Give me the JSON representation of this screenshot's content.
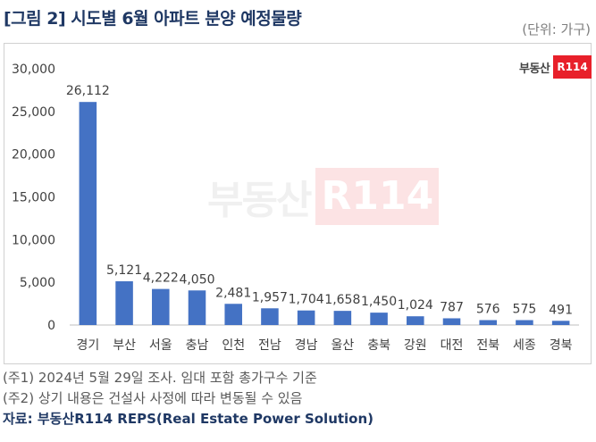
{
  "title": "[그림 2] 시도별 6월 아파트 분양 예정물량",
  "unit": "(단위: 가구)",
  "logo": {
    "text": "부동산",
    "badge": "R114"
  },
  "watermark": {
    "text": "부동산",
    "badge": "R114"
  },
  "notes": {
    "note1": "(주1) 2024년 5월 29일 조사. 임대 포함 총가구수 기준",
    "note2": "(주2) 상기 내용은 건설사 사정에 따라 변동될 수 있음",
    "source": "자료: 부동산R114 REPS(Real Estate Power Solution)"
  },
  "colors": {
    "bar": "#4472c4",
    "grid": "#d9d9d9",
    "text": "#404040"
  },
  "chart_data": {
    "type": "bar",
    "categories": [
      "경기",
      "부산",
      "서울",
      "충남",
      "인천",
      "전남",
      "경남",
      "울산",
      "충북",
      "강원",
      "대전",
      "전북",
      "세종",
      "경북"
    ],
    "values": [
      26112,
      5121,
      4222,
      4050,
      2481,
      1957,
      1704,
      1658,
      1450,
      1024,
      787,
      576,
      575,
      491
    ],
    "data_labels": [
      "26,112",
      "5,121",
      "4,222",
      "4,050",
      "2,481",
      "1,957",
      "1,704",
      "1,658",
      "1,450",
      "1,024",
      "787",
      "576",
      "575",
      "491"
    ],
    "y_ticks": [
      0,
      5000,
      10000,
      15000,
      20000,
      25000,
      30000
    ],
    "y_tick_labels": [
      "0",
      "5,000",
      "10,000",
      "15,000",
      "20,000",
      "25,000",
      "30,000"
    ],
    "ylim": [
      0,
      30000
    ],
    "grid": false
  }
}
